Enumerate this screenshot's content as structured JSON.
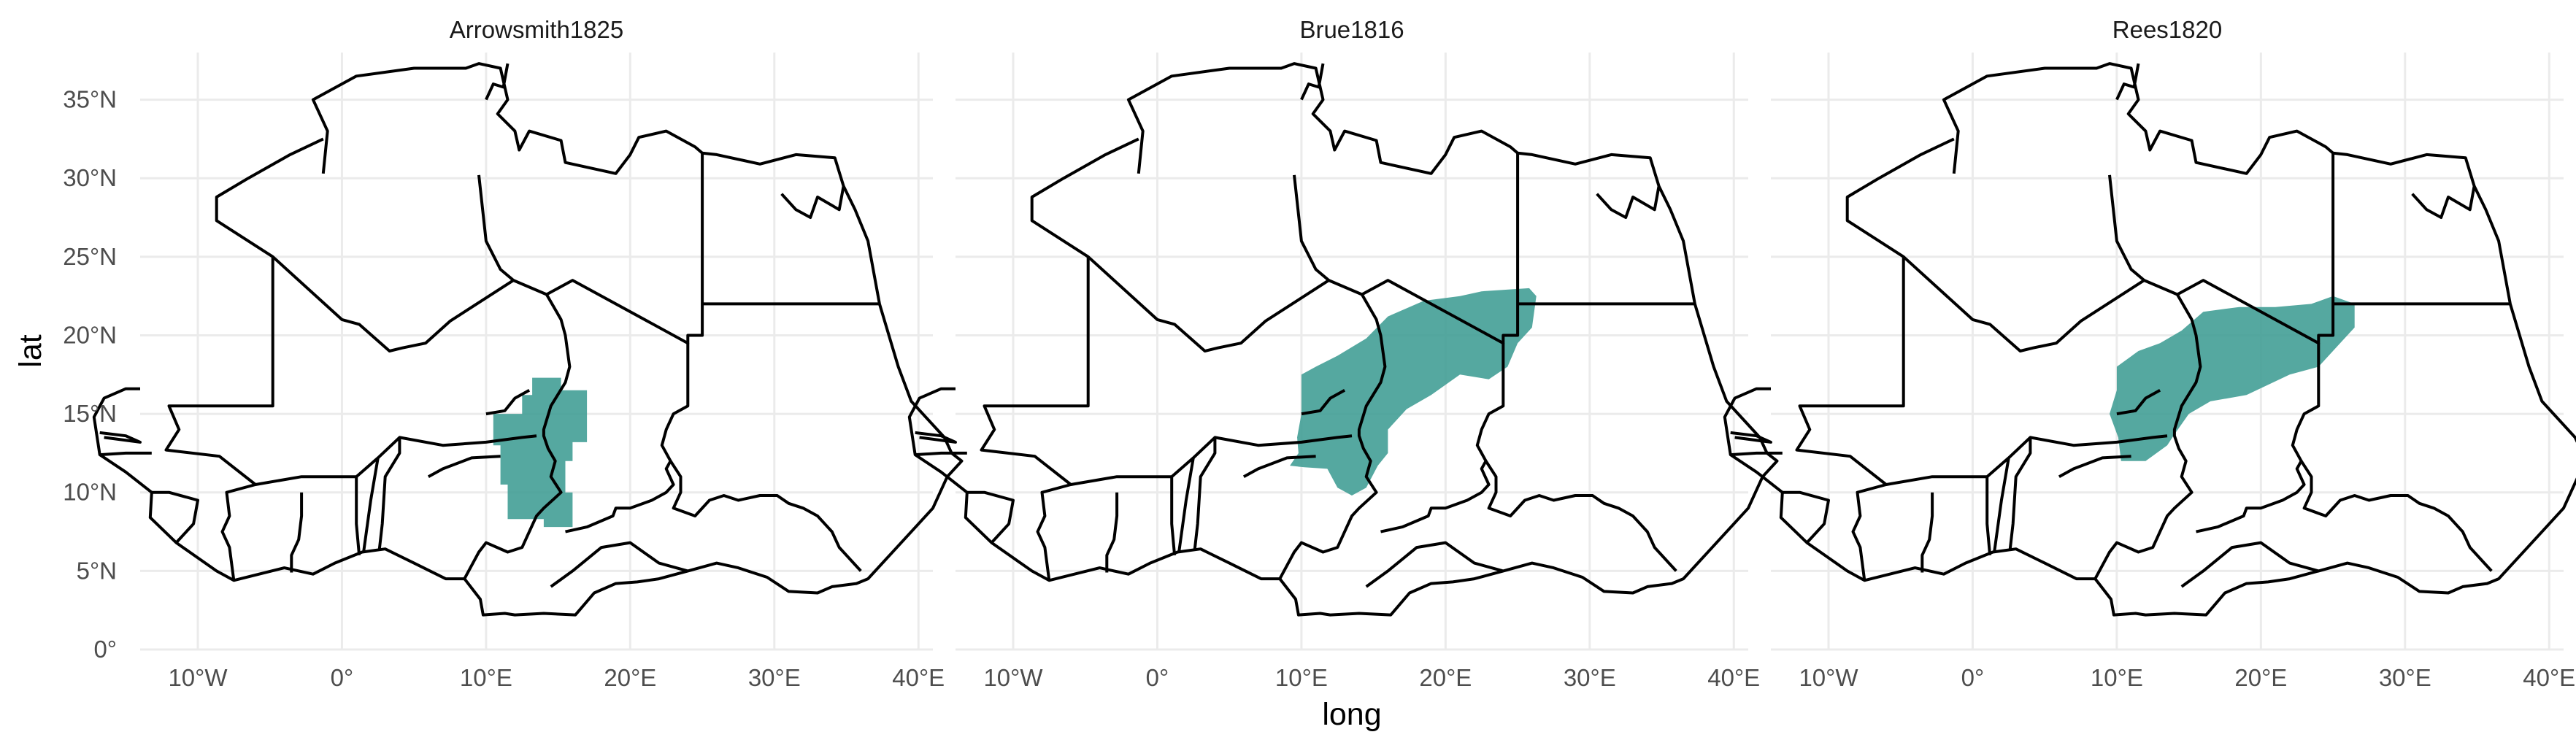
{
  "chart_data": {
    "type": "map",
    "x_label": "long",
    "y_label": "lat",
    "x_ticks": [
      "10°W",
      "0°",
      "10°E",
      "20°E",
      "30°E",
      "40°E"
    ],
    "y_ticks": [
      "0°",
      "5°N",
      "10°N",
      "15°N",
      "20°N",
      "25°N",
      "30°N",
      "35°N"
    ],
    "x_range": [
      -14,
      41
    ],
    "y_range": [
      0,
      38
    ],
    "grid": true,
    "colors": {
      "region_fill": "#3d9c93",
      "border": "#000000",
      "grid": "#ebebeb"
    },
    "panels": [
      {
        "title": "Arrowsmith1825",
        "region": [
          [
            10.5,
            15
          ],
          [
            12.5,
            15
          ],
          [
            12.5,
            16.2
          ],
          [
            13.2,
            16.2
          ],
          [
            13.2,
            17.3
          ],
          [
            15.2,
            17.3
          ],
          [
            15.2,
            16.5
          ],
          [
            17,
            16.5
          ],
          [
            17,
            13.2
          ],
          [
            16,
            13.2
          ],
          [
            16,
            12
          ],
          [
            15.5,
            12
          ],
          [
            15.5,
            10
          ],
          [
            16,
            10
          ],
          [
            16,
            7.8
          ],
          [
            14,
            7.8
          ],
          [
            14,
            8.3
          ],
          [
            11.5,
            8.3
          ],
          [
            11.5,
            10.5
          ],
          [
            11,
            10.5
          ],
          [
            11,
            13
          ],
          [
            10.5,
            13
          ]
        ]
      },
      {
        "title": "Brue1816",
        "region": [
          [
            10,
            15
          ],
          [
            10,
            17.5
          ],
          [
            11,
            18
          ],
          [
            12.5,
            18.7
          ],
          [
            14.5,
            19.8
          ],
          [
            16,
            21.2
          ],
          [
            18.5,
            22.2
          ],
          [
            21,
            22.5
          ],
          [
            22.5,
            22.8
          ],
          [
            25.8,
            23
          ],
          [
            26.3,
            22.5
          ],
          [
            26,
            20.5
          ],
          [
            25,
            19.5
          ],
          [
            24.3,
            18
          ],
          [
            23,
            17.2
          ],
          [
            21,
            17.5
          ],
          [
            19,
            16.2
          ],
          [
            17.3,
            15.3
          ],
          [
            16,
            14
          ],
          [
            16,
            12.5
          ],
          [
            15.3,
            11.7
          ],
          [
            14.5,
            10.3
          ],
          [
            13.5,
            9.8
          ],
          [
            12.5,
            10.3
          ],
          [
            11.8,
            11.5
          ],
          [
            10.2,
            11.6
          ],
          [
            9.2,
            11.7
          ],
          [
            9.8,
            12.5
          ],
          [
            9.7,
            13.5
          ]
        ]
      },
      {
        "title": "Rees1820",
        "region": [
          [
            10,
            16.5
          ],
          [
            10,
            18
          ],
          [
            11.5,
            19
          ],
          [
            13,
            19.5
          ],
          [
            14.5,
            20.3
          ],
          [
            16,
            21.5
          ],
          [
            18.5,
            21.8
          ],
          [
            21,
            21.8
          ],
          [
            23.5,
            22
          ],
          [
            25,
            22.5
          ],
          [
            26.5,
            22
          ],
          [
            26.5,
            20.5
          ],
          [
            25.5,
            19.5
          ],
          [
            24,
            18
          ],
          [
            22,
            17.5
          ],
          [
            19,
            16.2
          ],
          [
            16.5,
            15.8
          ],
          [
            15,
            15
          ],
          [
            14,
            13.7
          ],
          [
            13.5,
            13
          ],
          [
            12,
            12
          ],
          [
            10.3,
            12
          ],
          [
            10.1,
            13.5
          ],
          [
            9.5,
            15
          ]
        ]
      }
    ]
  }
}
